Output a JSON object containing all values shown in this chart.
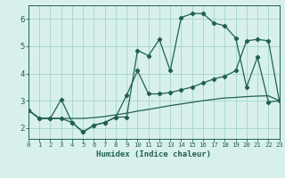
{
  "x": [
    0,
    1,
    2,
    3,
    4,
    5,
    6,
    7,
    8,
    9,
    10,
    11,
    12,
    13,
    14,
    15,
    16,
    17,
    18,
    19,
    20,
    21,
    22,
    23
  ],
  "line_jagged": [
    2.65,
    2.35,
    2.35,
    3.05,
    2.2,
    1.85,
    2.1,
    2.2,
    2.4,
    2.4,
    4.85,
    4.65,
    5.25,
    4.1,
    6.05,
    6.2,
    6.2,
    5.85,
    5.75,
    5.3,
    3.5,
    4.6,
    2.95,
    3.0
  ],
  "line_smooth": [
    2.65,
    2.35,
    2.35,
    2.35,
    2.2,
    1.85,
    2.1,
    2.2,
    2.4,
    3.2,
    4.1,
    3.25,
    3.25,
    3.3,
    3.4,
    3.5,
    3.65,
    3.8,
    3.9,
    4.1,
    5.2,
    5.25,
    5.2,
    3.0
  ],
  "line_linear": [
    2.65,
    2.35,
    2.35,
    2.35,
    2.35,
    2.35,
    2.38,
    2.42,
    2.48,
    2.54,
    2.62,
    2.68,
    2.75,
    2.82,
    2.88,
    2.94,
    3.0,
    3.05,
    3.1,
    3.12,
    3.15,
    3.17,
    3.18,
    3.0
  ],
  "bg_color": "#d8f0eb",
  "line_color": "#206050",
  "grid_color": "#a8d8d0",
  "xlabel": "Humidex (Indice chaleur)",
  "xlim": [
    0,
    23
  ],
  "ylim": [
    1.6,
    6.5
  ],
  "yticks": [
    2,
    3,
    4,
    5,
    6
  ],
  "xticks": [
    0,
    1,
    2,
    3,
    4,
    5,
    6,
    7,
    8,
    9,
    10,
    11,
    12,
    13,
    14,
    15,
    16,
    17,
    18,
    19,
    20,
    21,
    22,
    23
  ]
}
